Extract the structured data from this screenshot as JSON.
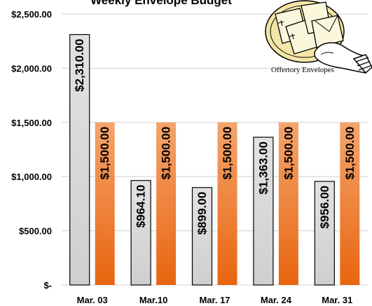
{
  "chart_data": {
    "type": "bar",
    "title": "Weekly Envelope Budget",
    "categories": [
      "Mar. 03",
      "Mar.10",
      "Mar. 17",
      "Mar. 24",
      "Mar. 31"
    ],
    "series": [
      {
        "values": [
          2310,
          964.1,
          899,
          1363,
          956
        ],
        "color": "#d9d9d9"
      },
      {
        "values": [
          1500,
          1500,
          1500,
          1500,
          1500
        ],
        "color": "#f07a2a"
      }
    ],
    "data_labels": [
      [
        "$2,310.00",
        "$964.10",
        "$899.00",
        "$1,363.00",
        "$956.00"
      ],
      [
        "$1,500.00",
        "$1,500.00",
        "$1,500.00",
        "$1,500.00",
        "$1,500.00"
      ]
    ],
    "yticks": [
      "$-",
      "$500.00",
      "$1,000.00",
      "$1,500.00",
      "$2,000.00",
      "$2,500.00"
    ],
    "ylim": [
      0,
      2500
    ],
    "grid": true,
    "legend": "none"
  },
  "clipart": {
    "caption": "Offertory Envelopes",
    "icon": "hand-holding-envelopes-icon"
  }
}
